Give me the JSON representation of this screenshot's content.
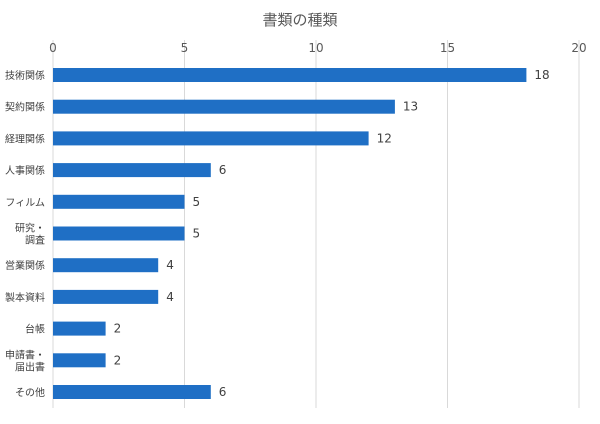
{
  "chart_data": {
    "type": "bar",
    "orientation": "horizontal",
    "title": "書類の種類",
    "xlabel": "",
    "ylabel": "",
    "xlim": [
      0,
      20
    ],
    "ticks": [
      "0",
      "5",
      "10",
      "15",
      "20"
    ],
    "categories": [
      [
        "技術関係"
      ],
      [
        "契約関係"
      ],
      [
        "経理関係"
      ],
      [
        "人事関係"
      ],
      [
        "フィルム"
      ],
      [
        "研究・",
        "調査"
      ],
      [
        "営業関係"
      ],
      [
        "製本資料"
      ],
      [
        "台帳"
      ],
      [
        "申請書・",
        "届出書"
      ],
      [
        "その他"
      ]
    ],
    "values": [
      18,
      13,
      12,
      6,
      5,
      5,
      4,
      4,
      2,
      2,
      6
    ],
    "bar_color": "#1f6fc5",
    "grid": true,
    "axis_position": "top",
    "data_labels": true,
    "legend": "none"
  }
}
